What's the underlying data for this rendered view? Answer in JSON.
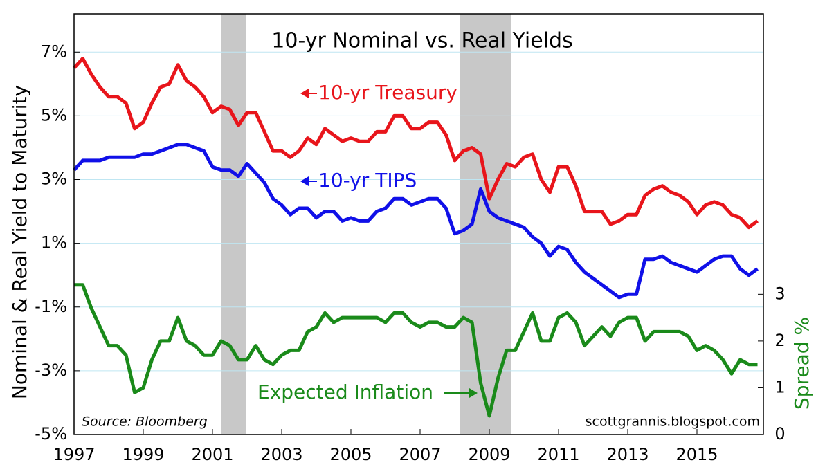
{
  "chart_data": {
    "type": "line",
    "title": "10-yr Nominal vs. Real Yields",
    "y_label": "Nominal & Real Yield to Maturity",
    "y2_label": "Spread %",
    "source": "Source: Bloomberg",
    "credit": "scottgrannis.blogspot.com",
    "xlim": [
      1997,
      2016.92
    ],
    "xticks": [
      1997,
      1999,
      2001,
      2003,
      2005,
      2007,
      2009,
      2011,
      2013,
      2015
    ],
    "ylim": [
      -5,
      8.2
    ],
    "yticks": [
      {
        "value": -5,
        "label": "-5%"
      },
      {
        "value": -3,
        "label": "-3%"
      },
      {
        "value": -1,
        "label": "-1%"
      },
      {
        "value": 1,
        "label": "1%"
      },
      {
        "value": 3,
        "label": "3%"
      },
      {
        "value": 5,
        "label": "5%"
      },
      {
        "value": 7,
        "label": "7%"
      }
    ],
    "y2lim": [
      0,
      9
    ],
    "y2ticks": [
      0,
      1,
      2,
      3
    ],
    "grid": true,
    "shaded_regions": [
      [
        2001.24,
        2001.98
      ],
      [
        2008.14,
        2009.64
      ]
    ],
    "x": [
      1997,
      1997.25,
      1997.5,
      1997.75,
      1998,
      1998.25,
      1998.5,
      1998.75,
      1999,
      1999.25,
      1999.5,
      1999.75,
      2000,
      2000.25,
      2000.5,
      2000.75,
      2001,
      2001.25,
      2001.5,
      2001.75,
      2002,
      2002.25,
      2002.5,
      2002.75,
      2003,
      2003.25,
      2003.5,
      2003.75,
      2004,
      2004.25,
      2004.5,
      2004.75,
      2005,
      2005.25,
      2005.5,
      2005.75,
      2006,
      2006.25,
      2006.5,
      2006.75,
      2007,
      2007.25,
      2007.5,
      2007.75,
      2008,
      2008.25,
      2008.5,
      2008.75,
      2009,
      2009.25,
      2009.5,
      2009.75,
      2010,
      2010.25,
      2010.5,
      2010.75,
      2011,
      2011.25,
      2011.5,
      2011.75,
      2012,
      2012.25,
      2012.5,
      2012.75,
      2013,
      2013.25,
      2013.5,
      2013.75,
      2014,
      2014.25,
      2014.5,
      2014.75,
      2015,
      2015.25,
      2015.5,
      2015.75,
      2016,
      2016.25,
      2016.5,
      2016.75
    ],
    "series": [
      {
        "name": "10-yr Treasury",
        "color": "#e8151b",
        "values": [
          6.5,
          6.8,
          6.3,
          5.9,
          5.6,
          5.6,
          5.4,
          4.6,
          4.8,
          5.4,
          5.9,
          6.0,
          6.6,
          6.1,
          5.9,
          5.6,
          5.1,
          5.3,
          5.2,
          4.7,
          5.1,
          5.1,
          4.5,
          3.9,
          3.9,
          3.7,
          3.9,
          4.3,
          4.1,
          4.6,
          4.4,
          4.2,
          4.3,
          4.2,
          4.2,
          4.5,
          4.5,
          5.0,
          5.0,
          4.6,
          4.6,
          4.8,
          4.8,
          4.4,
          3.6,
          3.9,
          4.0,
          3.8,
          2.4,
          3.0,
          3.5,
          3.4,
          3.7,
          3.8,
          3.0,
          2.6,
          3.4,
          3.4,
          2.8,
          2.0,
          2.0,
          2.0,
          1.6,
          1.7,
          1.9,
          1.9,
          2.5,
          2.7,
          2.8,
          2.6,
          2.5,
          2.3,
          1.9,
          2.2,
          2.3,
          2.2,
          1.9,
          1.8,
          1.5,
          1.7
        ]
      },
      {
        "name": "10-yr TIPS",
        "color": "#1010e8",
        "values": [
          3.3,
          3.6,
          3.6,
          3.6,
          3.7,
          3.7,
          3.7,
          3.7,
          3.8,
          3.8,
          3.9,
          4.0,
          4.1,
          4.1,
          4.0,
          3.9,
          3.4,
          3.3,
          3.3,
          3.1,
          3.5,
          3.2,
          2.9,
          2.4,
          2.2,
          1.9,
          2.1,
          2.1,
          1.8,
          2.0,
          2.0,
          1.7,
          1.8,
          1.7,
          1.7,
          2.0,
          2.1,
          2.4,
          2.4,
          2.2,
          2.3,
          2.4,
          2.4,
          2.1,
          1.3,
          1.4,
          1.6,
          2.7,
          2.0,
          1.8,
          1.7,
          1.6,
          1.5,
          1.2,
          1.0,
          0.6,
          0.9,
          0.8,
          0.4,
          0.1,
          -0.1,
          -0.3,
          -0.5,
          -0.7,
          -0.6,
          -0.6,
          0.5,
          0.5,
          0.6,
          0.4,
          0.3,
          0.2,
          0.1,
          0.3,
          0.5,
          0.6,
          0.6,
          0.2,
          0.0,
          0.2
        ]
      },
      {
        "name": "Expected Inflation",
        "color": "#1a8a1a",
        "axis": "y2",
        "values": [
          3.2,
          3.2,
          2.7,
          2.3,
          1.9,
          1.9,
          1.7,
          0.9,
          1.0,
          1.6,
          2.0,
          2.0,
          2.5,
          2.0,
          1.9,
          1.7,
          1.7,
          2.0,
          1.9,
          1.6,
          1.6,
          1.9,
          1.6,
          1.5,
          1.7,
          1.8,
          1.8,
          2.2,
          2.3,
          2.6,
          2.4,
          2.5,
          2.5,
          2.5,
          2.5,
          2.5,
          2.4,
          2.6,
          2.6,
          2.4,
          2.3,
          2.4,
          2.4,
          2.3,
          2.3,
          2.5,
          2.4,
          1.1,
          0.4,
          1.2,
          1.8,
          1.8,
          2.2,
          2.6,
          2.0,
          2.0,
          2.5,
          2.6,
          2.4,
          1.9,
          2.1,
          2.3,
          2.1,
          2.4,
          2.5,
          2.5,
          2.0,
          2.2,
          2.2,
          2.2,
          2.2,
          2.1,
          1.8,
          1.9,
          1.8,
          1.6,
          1.3,
          1.6,
          1.5,
          1.5
        ]
      }
    ]
  }
}
